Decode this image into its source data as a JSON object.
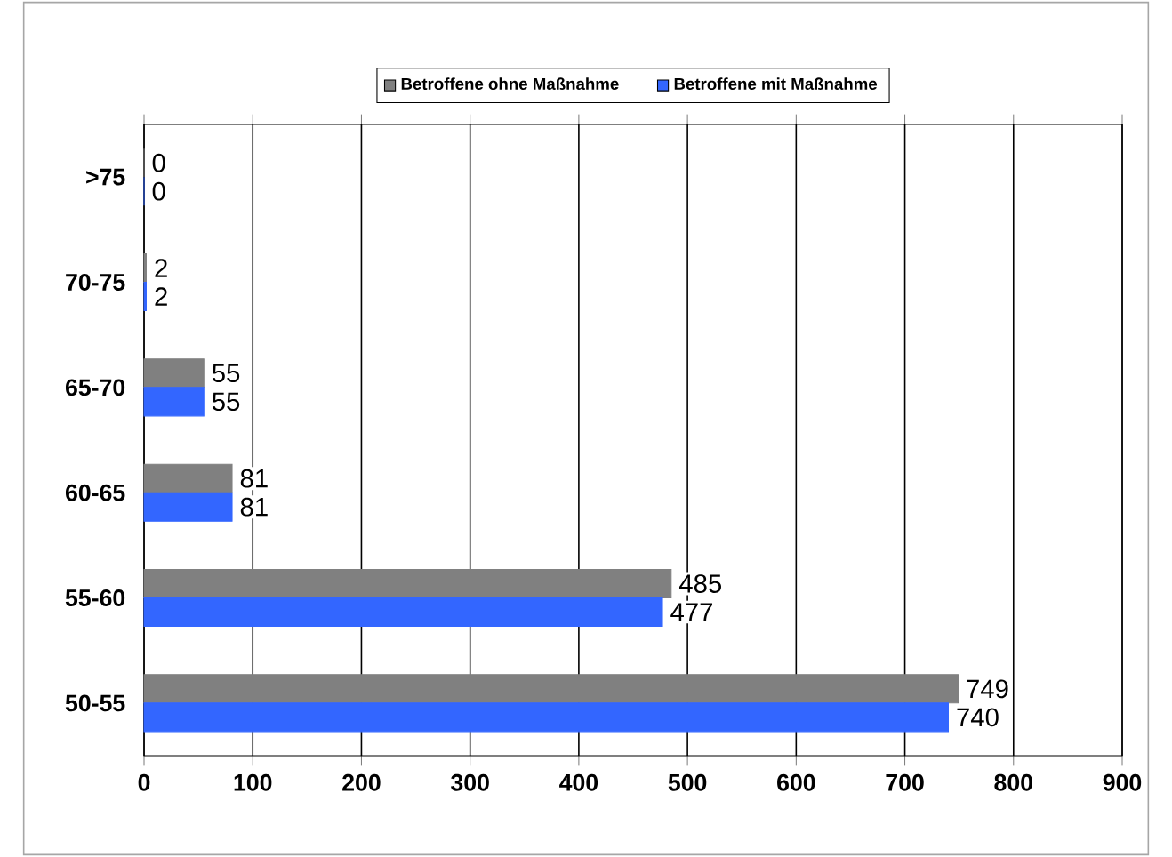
{
  "chart_data": {
    "type": "bar",
    "orientation": "horizontal",
    "categories": [
      ">75",
      "70-75",
      "65-70",
      "60-65",
      "55-60",
      "50-55"
    ],
    "series": [
      {
        "name": "Betroffene ohne Maßnahme",
        "color": "#808080",
        "values": [
          0,
          2,
          55,
          81,
          485,
          749
        ]
      },
      {
        "name": "Betroffene mit Maßnahme",
        "color": "#3366ff",
        "values": [
          0,
          2,
          55,
          81,
          477,
          740
        ]
      }
    ],
    "xlim": [
      0,
      900
    ],
    "xticks": [
      0,
      100,
      200,
      300,
      400,
      500,
      600,
      700,
      800,
      900
    ],
    "grid": "x",
    "legend": "top",
    "data_labels": true
  }
}
